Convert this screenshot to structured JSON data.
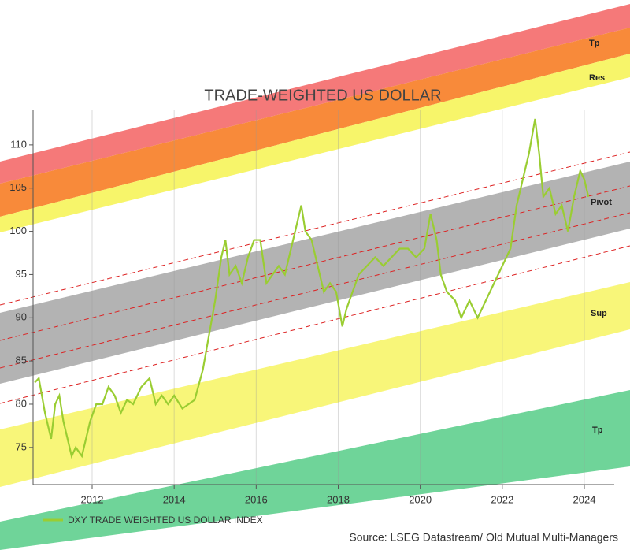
{
  "chart_data": {
    "type": "line",
    "title": "TRADE-WEIGHTED US DOLLAR",
    "source": "Source: LSEG Datastream/ Old Mutual Multi-Managers",
    "annotations": [
      "Tp",
      "Res",
      "Pivot",
      "Sup",
      "Tp"
    ],
    "x": [
      2010.6,
      2010.7,
      2010.85,
      2011.0,
      2011.1,
      2011.2,
      2011.3,
      2011.5,
      2011.6,
      2011.75,
      2011.85,
      2011.95,
      2012.1,
      2012.25,
      2012.4,
      2012.55,
      2012.7,
      2012.85,
      2013.0,
      2013.2,
      2013.4,
      2013.55,
      2013.7,
      2013.85,
      2014.0,
      2014.2,
      2014.35,
      2014.5,
      2014.7,
      2014.85,
      2015.0,
      2015.15,
      2015.25,
      2015.35,
      2015.5,
      2015.65,
      2015.8,
      2015.95,
      2016.1,
      2016.25,
      2016.4,
      2016.55,
      2016.7,
      2016.85,
      2017.0,
      2017.1,
      2017.2,
      2017.35,
      2017.5,
      2017.65,
      2017.8,
      2017.95,
      2018.1,
      2018.2,
      2018.35,
      2018.5,
      2018.7,
      2018.9,
      2019.1,
      2019.3,
      2019.5,
      2019.7,
      2019.9,
      2020.1,
      2020.25,
      2020.4,
      2020.5,
      2020.65,
      2020.85,
      2021.0,
      2021.2,
      2021.4,
      2021.6,
      2021.8,
      2022.0,
      2022.2,
      2022.35,
      2022.5,
      2022.65,
      2022.8,
      2022.9,
      2023.0,
      2023.15,
      2023.3,
      2023.45,
      2023.6,
      2023.75,
      2023.9,
      2024.0,
      2024.1
    ],
    "series": [
      {
        "name": "DXY TRADE WEIGHTED US DOLLAR INDEX",
        "color": "#9acd32",
        "values": [
          82.5,
          83,
          79,
          76,
          80,
          81,
          78,
          74,
          75,
          74,
          76,
          78,
          80,
          80,
          82,
          81,
          79,
          80.5,
          80,
          82,
          83,
          80,
          81,
          80,
          81,
          79.5,
          80,
          80.5,
          84,
          88,
          92,
          97,
          99,
          95,
          96,
          94,
          97,
          99,
          99,
          94,
          95,
          96,
          95,
          98,
          101,
          103,
          100,
          99,
          96,
          93,
          94,
          93,
          89,
          91,
          93,
          95,
          96,
          97,
          96,
          97,
          98,
          98,
          97,
          98,
          102,
          99,
          95,
          93,
          92,
          90,
          92,
          90,
          92,
          94,
          96,
          98,
          103,
          106,
          109,
          113,
          109,
          104,
          105,
          102,
          103,
          100,
          104,
          107,
          106,
          104
        ]
      }
    ],
    "xlim": [
      2010.56,
      2024.73
    ],
    "ylim": [
      70.7,
      114
    ],
    "xticks": [
      2012,
      2014,
      2016,
      2018,
      2020,
      2022,
      2024
    ],
    "yticks": [
      75,
      80,
      85,
      90,
      95,
      100,
      105,
      110
    ],
    "grid": true
  }
}
